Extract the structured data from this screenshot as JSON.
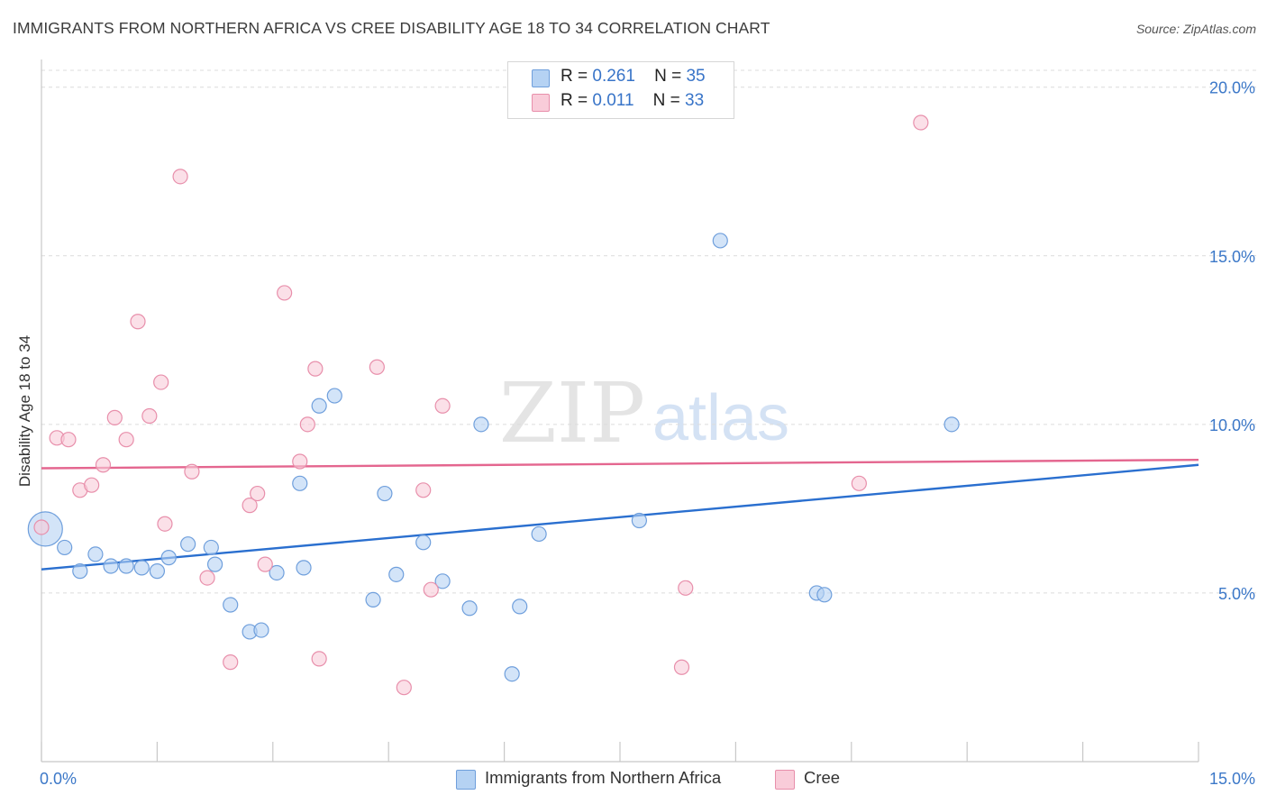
{
  "title": "IMMIGRANTS FROM NORTHERN AFRICA VS CREE DISABILITY AGE 18 TO 34 CORRELATION CHART",
  "source": "Source: ZipAtlas.com",
  "watermark": {
    "zip": "ZIP",
    "atlas": "atlas"
  },
  "legend_top": [
    {
      "r_label": "R =",
      "r_value": "0.261",
      "n_label": "N =",
      "n_value": "35"
    },
    {
      "r_label": "R =",
      "r_value": "0.011",
      "n_label": "N =",
      "n_value": "33"
    }
  ],
  "legend_bottom": [
    {
      "label": "Immigrants from Northern Africa"
    },
    {
      "label": "Cree"
    }
  ],
  "colors": {
    "blue_fill": "#b5d2f3",
    "blue_stroke": "#6f9fdc",
    "blue_line": "#2a6fcf",
    "pink_fill": "#f9ccd9",
    "pink_stroke": "#e88fab",
    "pink_line": "#e4668f",
    "axis_label": "#3c78c8",
    "grid": "#dcdcdc"
  },
  "chart_data": {
    "type": "scatter",
    "xlabel": "",
    "ylabel": "Disability Age 18 to 34",
    "xlim": [
      0,
      15
    ],
    "ylim": [
      0,
      20.5
    ],
    "x_tick_labels": [
      "0.0%",
      "15.0%"
    ],
    "y_tick_values": [
      5,
      10,
      15,
      20
    ],
    "y_tick_labels": [
      "5.0%",
      "10.0%",
      "15.0%",
      "20.0%"
    ],
    "grid": true,
    "legend_placement": "top-center and bottom",
    "series": [
      {
        "name": "Immigrants from Northern Africa",
        "color": "blue",
        "points": [
          {
            "x": 0.05,
            "y": 6.9,
            "big": true
          },
          {
            "x": 0.3,
            "y": 6.35
          },
          {
            "x": 0.5,
            "y": 5.65
          },
          {
            "x": 0.7,
            "y": 6.15
          },
          {
            "x": 0.9,
            "y": 5.8
          },
          {
            "x": 1.1,
            "y": 5.8
          },
          {
            "x": 1.3,
            "y": 5.75
          },
          {
            "x": 1.5,
            "y": 5.65
          },
          {
            "x": 1.65,
            "y": 6.05
          },
          {
            "x": 1.9,
            "y": 6.45
          },
          {
            "x": 2.2,
            "y": 6.35
          },
          {
            "x": 2.25,
            "y": 5.85
          },
          {
            "x": 2.45,
            "y": 4.65
          },
          {
            "x": 2.7,
            "y": 3.85
          },
          {
            "x": 2.85,
            "y": 3.9
          },
          {
            "x": 3.05,
            "y": 5.6
          },
          {
            "x": 3.35,
            "y": 8.25
          },
          {
            "x": 3.4,
            "y": 5.75
          },
          {
            "x": 3.6,
            "y": 10.55
          },
          {
            "x": 3.8,
            "y": 10.85
          },
          {
            "x": 4.3,
            "y": 4.8
          },
          {
            "x": 4.45,
            "y": 7.95
          },
          {
            "x": 4.6,
            "y": 5.55
          },
          {
            "x": 4.95,
            "y": 6.5
          },
          {
            "x": 5.2,
            "y": 5.35
          },
          {
            "x": 5.55,
            "y": 4.55
          },
          {
            "x": 5.7,
            "y": 10.0
          },
          {
            "x": 6.1,
            "y": 2.6
          },
          {
            "x": 6.2,
            "y": 4.6
          },
          {
            "x": 6.45,
            "y": 6.75
          },
          {
            "x": 7.75,
            "y": 7.15
          },
          {
            "x": 8.8,
            "y": 15.45
          },
          {
            "x": 10.05,
            "y": 5.0
          },
          {
            "x": 10.15,
            "y": 4.95
          },
          {
            "x": 11.8,
            "y": 10.0
          }
        ],
        "trend": {
          "x": [
            0,
            15
          ],
          "y": [
            5.7,
            8.8
          ]
        }
      },
      {
        "name": "Cree",
        "color": "pink",
        "points": [
          {
            "x": 0.0,
            "y": 6.95
          },
          {
            "x": 0.2,
            "y": 9.6
          },
          {
            "x": 0.35,
            "y": 9.55
          },
          {
            "x": 0.5,
            "y": 8.05
          },
          {
            "x": 0.65,
            "y": 8.2
          },
          {
            "x": 0.8,
            "y": 8.8
          },
          {
            "x": 0.95,
            "y": 10.2
          },
          {
            "x": 1.1,
            "y": 9.55
          },
          {
            "x": 1.25,
            "y": 13.05
          },
          {
            "x": 1.4,
            "y": 10.25
          },
          {
            "x": 1.55,
            "y": 11.25
          },
          {
            "x": 1.6,
            "y": 7.05
          },
          {
            "x": 1.8,
            "y": 17.35
          },
          {
            "x": 1.95,
            "y": 8.6
          },
          {
            "x": 2.15,
            "y": 5.45
          },
          {
            "x": 2.45,
            "y": 2.95
          },
          {
            "x": 2.7,
            "y": 7.6
          },
          {
            "x": 2.8,
            "y": 7.95
          },
          {
            "x": 2.9,
            "y": 5.85
          },
          {
            "x": 3.15,
            "y": 13.9
          },
          {
            "x": 3.35,
            "y": 8.9
          },
          {
            "x": 3.45,
            "y": 10.0
          },
          {
            "x": 3.55,
            "y": 11.65
          },
          {
            "x": 3.6,
            "y": 3.05
          },
          {
            "x": 4.35,
            "y": 11.7
          },
          {
            "x": 4.7,
            "y": 2.2
          },
          {
            "x": 4.95,
            "y": 8.05
          },
          {
            "x": 5.05,
            "y": 5.1
          },
          {
            "x": 5.2,
            "y": 10.55
          },
          {
            "x": 8.3,
            "y": 2.8
          },
          {
            "x": 8.35,
            "y": 5.15
          },
          {
            "x": 10.6,
            "y": 8.25
          },
          {
            "x": 11.4,
            "y": 18.95
          }
        ],
        "trend": {
          "x": [
            0,
            15
          ],
          "y": [
            8.7,
            8.95
          ]
        }
      }
    ]
  }
}
